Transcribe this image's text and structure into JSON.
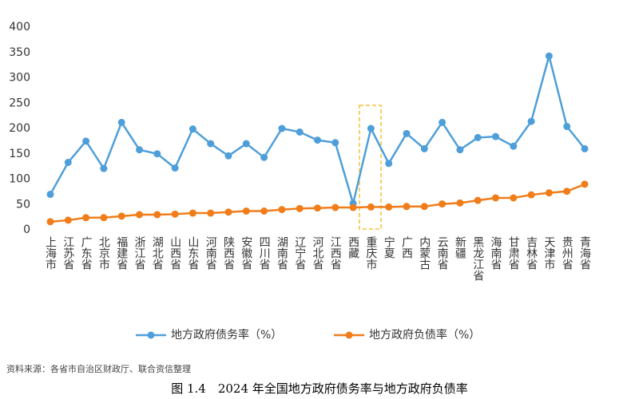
{
  "chart_data": {
    "type": "line",
    "categories": [
      "上海市",
      "江苏省",
      "广东省",
      "北京市",
      "福建省",
      "浙江省",
      "湖北省",
      "山西省",
      "山东省",
      "河南省",
      "陕西省",
      "安徽省",
      "四川省",
      "湖南省",
      "辽宁省",
      "河北省",
      "江西省",
      "西藏",
      "重庆市",
      "宁夏",
      "广西",
      "内蒙古",
      "云南省",
      "新疆",
      "黑龙江省",
      "海南省",
      "甘肃省",
      "吉林省",
      "天津市",
      "贵州省",
      "青海省"
    ],
    "series": [
      {
        "name": "地方政府债务率（%）",
        "color": "#4e9fd9",
        "values": [
          70,
          133,
          175,
          121,
          212,
          158,
          150,
          122,
          199,
          170,
          146,
          170,
          143,
          200,
          193,
          177,
          172,
          52,
          200,
          131,
          190,
          160,
          212,
          158,
          182,
          184,
          165,
          214,
          343,
          204,
          160
        ]
      },
      {
        "name": "地方政府负债率（%）",
        "color": "#f07d1a",
        "values": [
          16,
          19,
          24,
          24,
          27,
          30,
          30,
          31,
          33,
          33,
          35,
          37,
          37,
          40,
          42,
          43,
          44,
          44,
          45,
          45,
          46,
          46,
          51,
          53,
          58,
          63,
          63,
          69,
          73,
          76,
          90
        ]
      }
    ],
    "ylim": [
      0,
      400
    ],
    "yticks": [
      0,
      50,
      100,
      150,
      200,
      250,
      300,
      350,
      400
    ],
    "grid": false,
    "legend": "bottom",
    "source": "资料来源：各省市自治区财政厅、联合资信整理",
    "caption": "图 1.4　2024 年全国地方政府债务率与地方政府负债率"
  }
}
